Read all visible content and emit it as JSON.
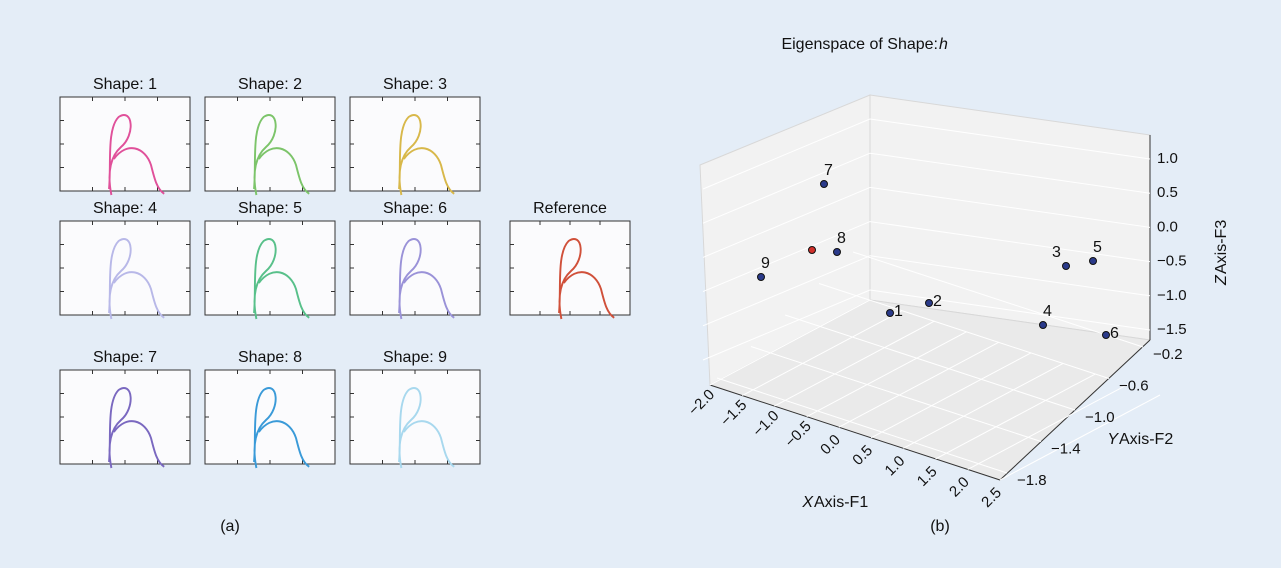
{
  "panel_a": {
    "shapes": [
      "Shape: 1",
      "Shape: 2",
      "Shape: 3",
      "Shape: 4",
      "Shape: 5",
      "Shape: 6",
      "Shape: 7",
      "Shape: 8",
      "Shape: 9"
    ],
    "reference": "Reference",
    "caption": "(a)"
  },
  "panel_b": {
    "title": "Eigenspace of Shape: ",
    "title_var": "h",
    "x_axis": {
      "var": "X",
      "label": " Axis-F1",
      "ticks": [
        "−2.0",
        "−1.5",
        "−1.0",
        "−0.5",
        "0.0",
        "0.5",
        "1.0",
        "1.5",
        "2.0",
        "2.5"
      ]
    },
    "y_axis": {
      "var": "Y",
      "label": " Axis-F2",
      "ticks": [
        "−0.2",
        "−0.6",
        "−1.0",
        "−1.4",
        "−1.8"
      ]
    },
    "z_axis": {
      "var": "Z",
      "label": " Axis-F3",
      "ticks": [
        "1.0",
        "0.5",
        "0.0",
        "−0.5",
        "−1.0",
        "−1.5"
      ]
    },
    "points": [
      "1",
      "2",
      "3",
      "4",
      "5",
      "6",
      "7",
      "8",
      "9"
    ],
    "caption": "(b)"
  }
}
